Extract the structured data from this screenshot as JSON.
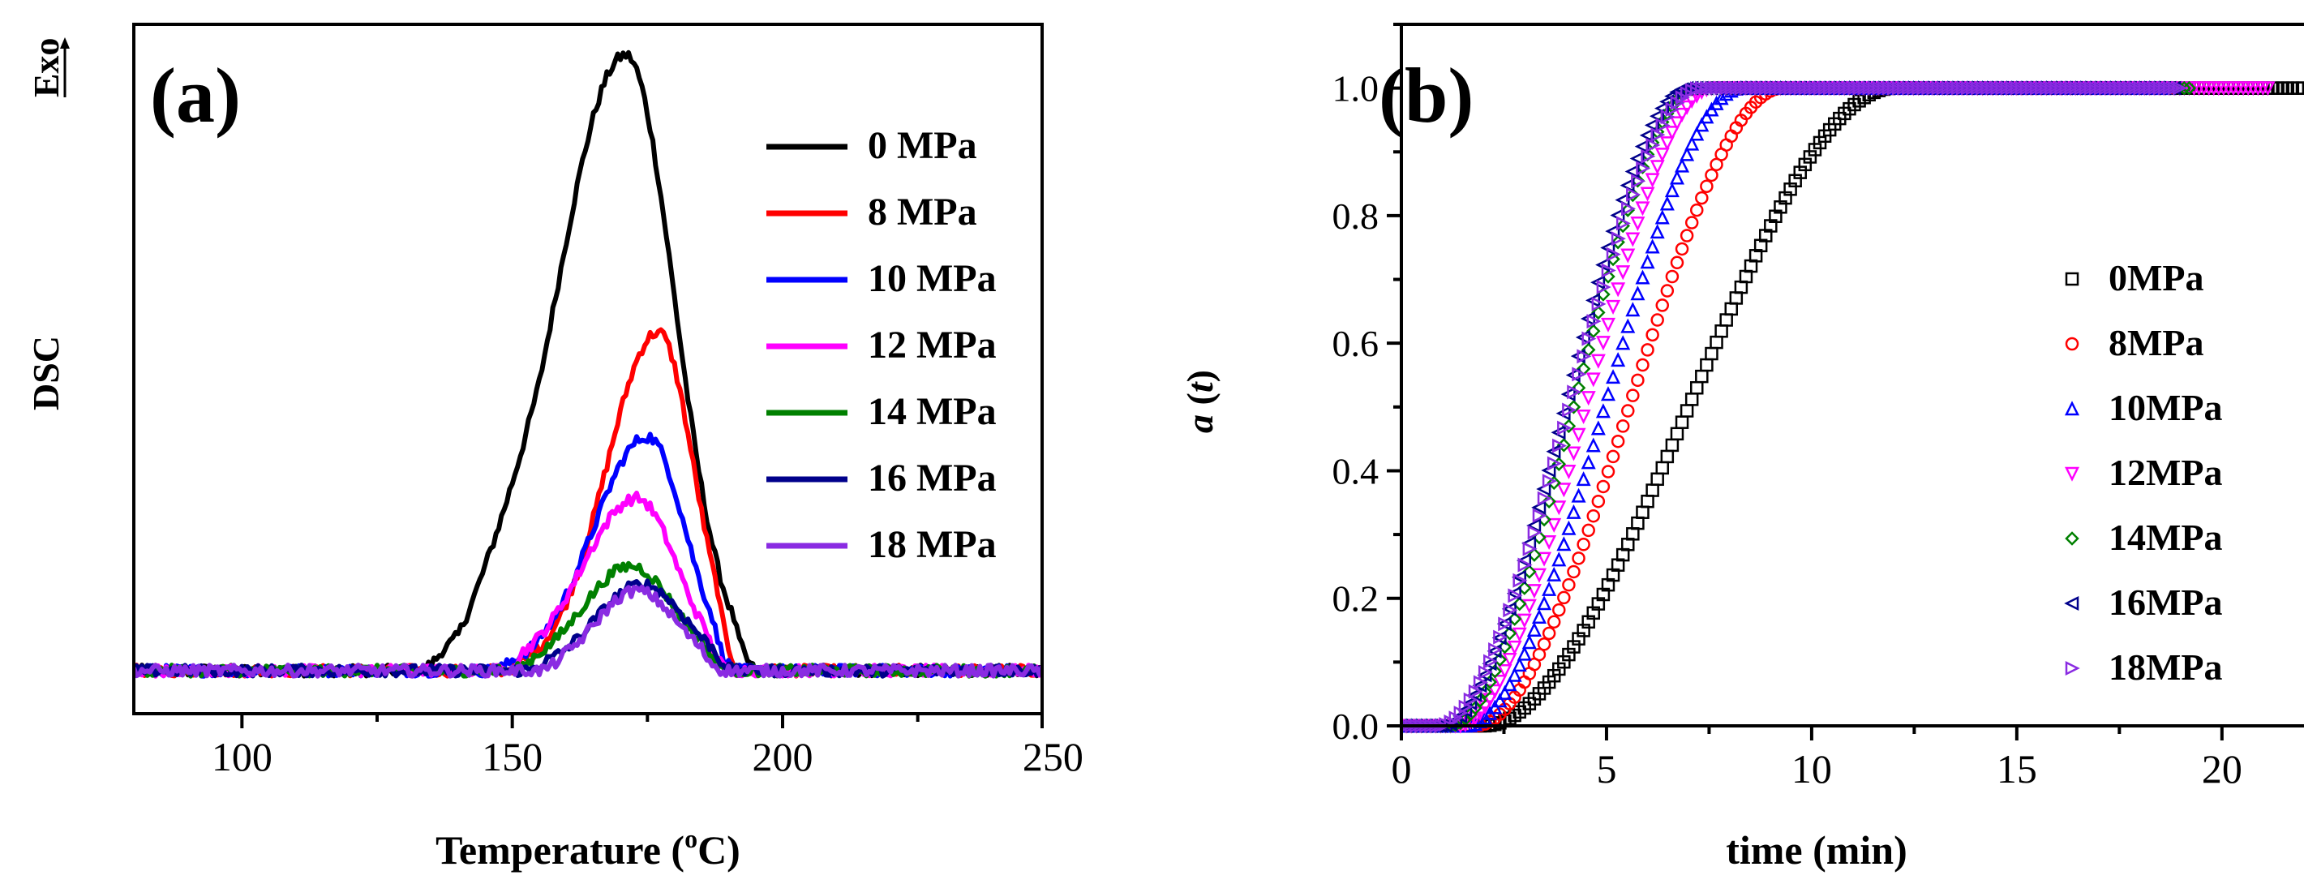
{
  "chart_data": [
    {
      "type": "line",
      "panel_label": "(a)",
      "xlabel": "Temperature (",
      "xlabel_unit": "C)",
      "xlabel_sup": "o",
      "ylabel": "DSC",
      "exo_label": "Exo",
      "xlim": [
        80,
        248
      ],
      "ylim": [
        -0.07,
        1.05
      ],
      "xticks": [
        100,
        150,
        200,
        250
      ],
      "yticks": [],
      "legend_position": "top-right",
      "series": [
        {
          "name": "0 MPa",
          "color": "#000000",
          "peak_x": 171,
          "peak_y": 1.0,
          "sigma_left": 13.0,
          "sigma_right": 9.0,
          "onset": 133,
          "end": 195
        },
        {
          "name": "8 MPa",
          "color": "#ff0000",
          "peak_x": 177,
          "peak_y": 0.55,
          "sigma_left": 9.5,
          "sigma_right": 6.5,
          "onset": 148,
          "end": 192
        },
        {
          "name": "10 MPa",
          "color": "#0000ff",
          "peak_x": 175,
          "peak_y": 0.38,
          "sigma_left": 10.0,
          "sigma_right": 7.0,
          "onset": 146,
          "end": 191
        },
        {
          "name": "12 MPa",
          "color": "#ff00ff",
          "peak_x": 173,
          "peak_y": 0.28,
          "sigma_left": 10.0,
          "sigma_right": 7.5,
          "onset": 148,
          "end": 190
        },
        {
          "name": "14 MPa",
          "color": "#008000",
          "peak_x": 172,
          "peak_y": 0.17,
          "sigma_left": 9.0,
          "sigma_right": 8.0,
          "onset": 150,
          "end": 190
        },
        {
          "name": "16 MPa",
          "color": "#00008b",
          "peak_x": 174,
          "peak_y": 0.14,
          "sigma_left": 8.5,
          "sigma_right": 8.0,
          "onset": 152,
          "end": 191
        },
        {
          "name": "18 MPa",
          "color": "#8a2be2",
          "peak_x": 173,
          "peak_y": 0.13,
          "sigma_left": 7.5,
          "sigma_right": 7.5,
          "onset": 155,
          "end": 189
        }
      ]
    },
    {
      "type": "scatter",
      "panel_label": "(b)",
      "xlabel": "time (min)",
      "ylabel_italic": "a",
      "ylabel_rest": " (",
      "ylabel_t": "t",
      "ylabel_close": ")",
      "xlim": [
        0,
        22
      ],
      "ylim": [
        0,
        1.1
      ],
      "xticks": [
        0,
        5,
        10,
        15,
        20
      ],
      "yticks": [
        "0.0",
        "0.2",
        "0.4",
        "0.6",
        "0.8",
        "1.0"
      ],
      "ytick_values": [
        0,
        0.2,
        0.4,
        0.6,
        0.8,
        1.0
      ],
      "legend_position": "center-right",
      "series": [
        {
          "name": "0MPa",
          "color": "#000000",
          "marker": "square",
          "t0": 2.0,
          "t1": 12.0,
          "t_last": 22.0
        },
        {
          "name": "8MPa",
          "color": "#ff0000",
          "marker": "circle",
          "t0": 1.8,
          "t1": 9.3,
          "t_last": 18.8
        },
        {
          "name": "10MPa",
          "color": "#0000ff",
          "marker": "triangle-up",
          "t0": 1.6,
          "t1": 8.3,
          "t_last": 18.6
        },
        {
          "name": "12MPa",
          "color": "#ff00ff",
          "marker": "triangle-down",
          "t0": 1.4,
          "t1": 7.6,
          "t_last": 21.2
        },
        {
          "name": "14MPa",
          "color": "#008000",
          "marker": "diamond",
          "t0": 1.2,
          "t1": 7.2,
          "t_last": 19.3
        },
        {
          "name": "16MPa",
          "color": "#00008b",
          "marker": "triangle-left",
          "t0": 1.0,
          "t1": 7.0,
          "t_last": 18.9
        },
        {
          "name": "18MPa",
          "color": "#8a2be2",
          "marker": "triangle-right",
          "t0": 0.9,
          "t1": 7.3,
          "t_last": 19.0
        }
      ]
    }
  ]
}
